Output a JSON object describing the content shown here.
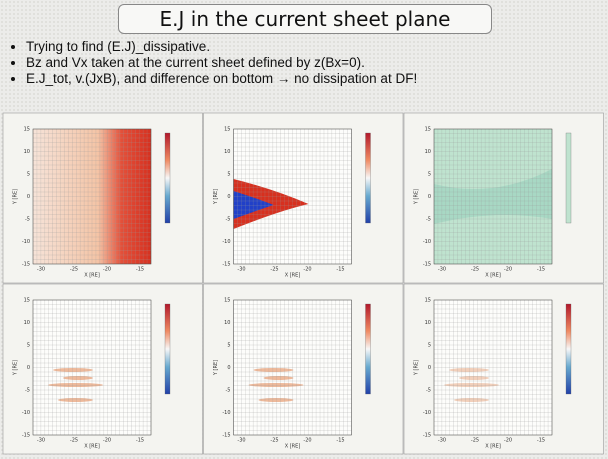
{
  "title": "E.J in the current sheet plane",
  "bullets": [
    "Trying to find (E.J)_dissipative.",
    "Bz and Vx taken at the current sheet defined by z(Bx=0).",
    "E.J_tot,  v.(JxB), and difference on bottom → no dissipation at DF!"
  ],
  "axes": {
    "x_label": "X [RE]",
    "y_label": "Y [RE]",
    "xticks": [
      "-30",
      "-25",
      "-20",
      "-15"
    ],
    "yticks": [
      "15",
      "10",
      "5",
      "0",
      "-5",
      "-10",
      "-15"
    ]
  }
}
